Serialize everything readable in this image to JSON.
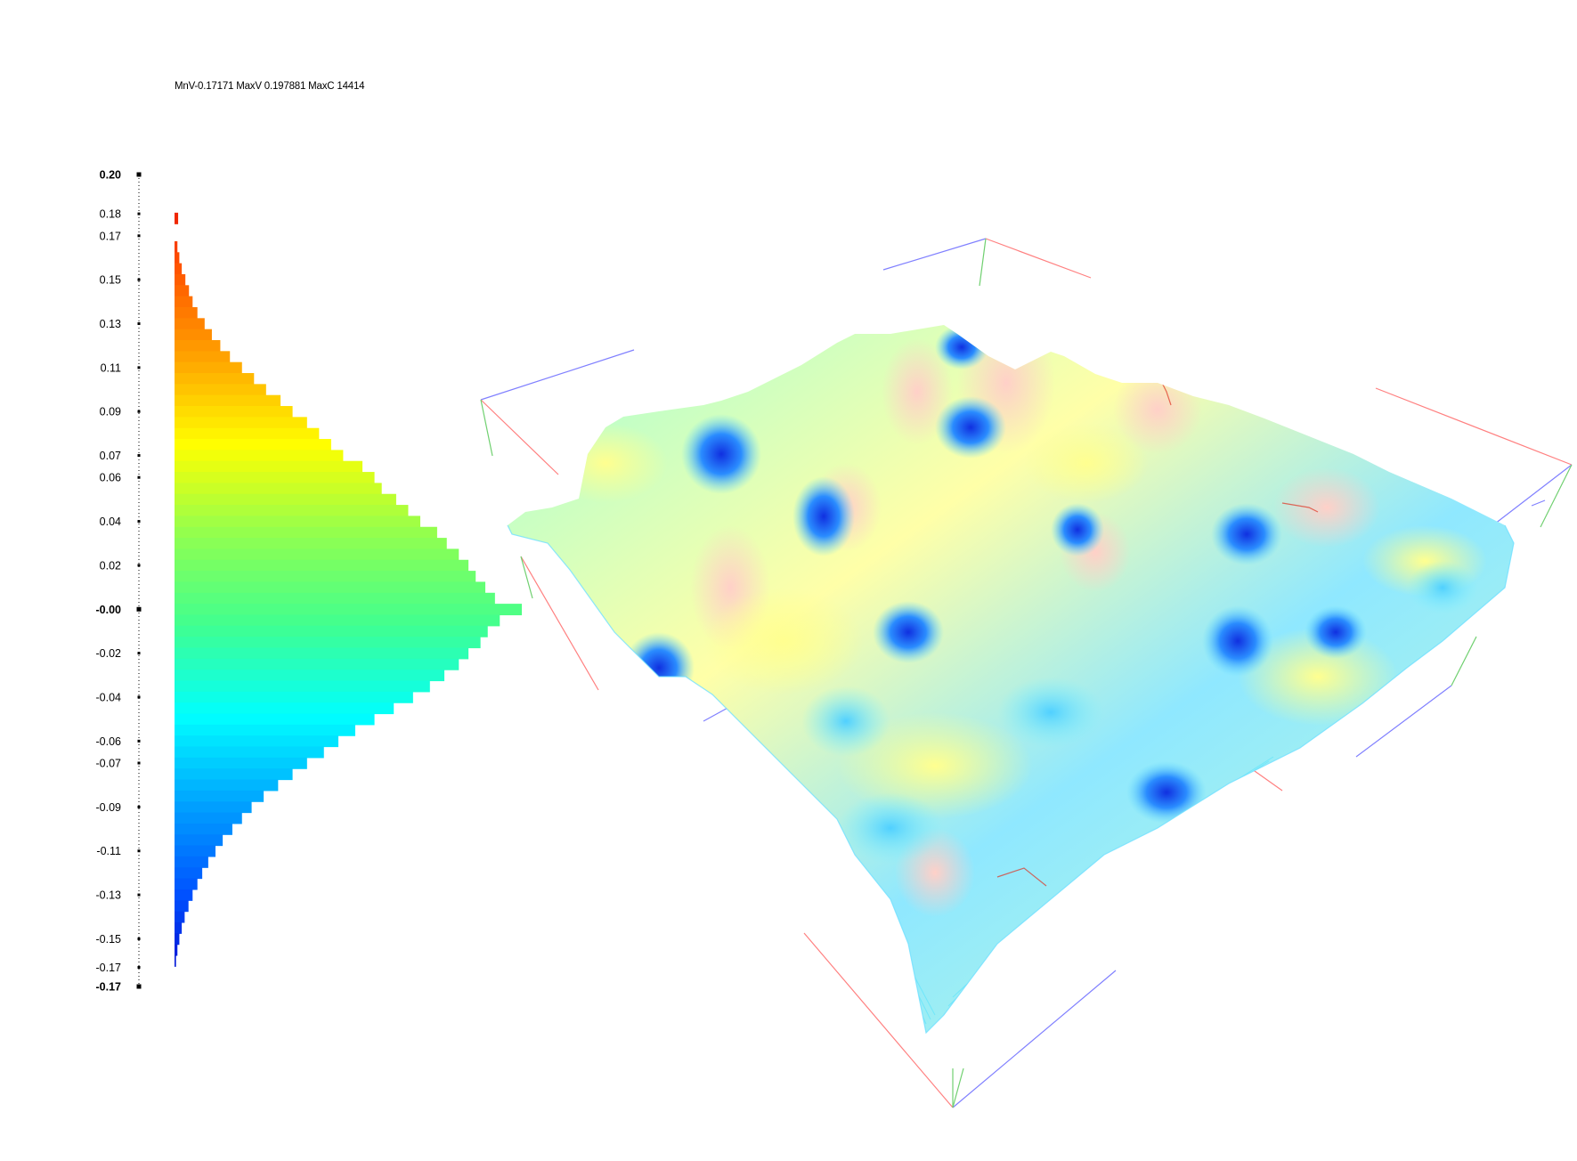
{
  "stats": {
    "text": "MnV-0.17171 MaxV 0.197881 MaxC 14414"
  },
  "colorscale": [
    "#0000c8",
    "#0050ff",
    "#00a0ff",
    "#00ffff",
    "#40ff90",
    "#90ff50",
    "#ffff00",
    "#ffa000",
    "#ff5000",
    "#e00000"
  ],
  "axis_colors": {
    "x": "#ff7070",
    "y": "#7070ff",
    "z": "#60d060"
  },
  "chart_data": [
    {
      "type": "bar",
      "orientation": "horizontal",
      "title": "",
      "description": "Histogram of surface height values, bars colored by value",
      "min_value": -0.17171,
      "max_value": 0.197881,
      "max_count": 14414,
      "ylim": [
        -0.17171,
        0.197881
      ],
      "y_ticks": [
        "0.20",
        "0.18",
        "0.17",
        "0.15",
        "0.13",
        "0.11",
        "0.09",
        "0.07",
        "0.06",
        "0.04",
        "0.02",
        "-0.00",
        "-0.02",
        "-0.04",
        "-0.06",
        "-0.07",
        "-0.09",
        "-0.11",
        "-0.13",
        "-0.15",
        "-0.17",
        "-0.17"
      ],
      "y_tick_values": [
        0.197881,
        0.18,
        0.17,
        0.15,
        0.13,
        0.11,
        0.09,
        0.07,
        0.06,
        0.04,
        0.02,
        0.0,
        -0.02,
        -0.04,
        -0.06,
        -0.07,
        -0.09,
        -0.11,
        -0.13,
        -0.15,
        -0.163,
        -0.17171
      ],
      "bold_ticks": [
        "0.20",
        "-0.00",
        "-0.17"
      ],
      "bins": [
        {
          "value": 0.178,
          "count": 150
        },
        {
          "value": 0.165,
          "count": 120
        },
        {
          "value": 0.16,
          "count": 200
        },
        {
          "value": 0.155,
          "count": 300
        },
        {
          "value": 0.15,
          "count": 450
        },
        {
          "value": 0.145,
          "count": 600
        },
        {
          "value": 0.14,
          "count": 750
        },
        {
          "value": 0.135,
          "count": 950
        },
        {
          "value": 0.13,
          "count": 1250
        },
        {
          "value": 0.125,
          "count": 1550
        },
        {
          "value": 0.12,
          "count": 1900
        },
        {
          "value": 0.115,
          "count": 2300
        },
        {
          "value": 0.11,
          "count": 2800
        },
        {
          "value": 0.105,
          "count": 3300
        },
        {
          "value": 0.1,
          "count": 3800
        },
        {
          "value": 0.095,
          "count": 4400
        },
        {
          "value": 0.09,
          "count": 4900
        },
        {
          "value": 0.085,
          "count": 5500
        },
        {
          "value": 0.08,
          "count": 6000
        },
        {
          "value": 0.075,
          "count": 6500
        },
        {
          "value": 0.07,
          "count": 7000
        },
        {
          "value": 0.065,
          "count": 7800
        },
        {
          "value": 0.06,
          "count": 8300
        },
        {
          "value": 0.055,
          "count": 8600
        },
        {
          "value": 0.05,
          "count": 9200
        },
        {
          "value": 0.045,
          "count": 9700
        },
        {
          "value": 0.04,
          "count": 10200
        },
        {
          "value": 0.035,
          "count": 10900
        },
        {
          "value": 0.03,
          "count": 11300
        },
        {
          "value": 0.025,
          "count": 11800
        },
        {
          "value": 0.02,
          "count": 12200
        },
        {
          "value": 0.015,
          "count": 12500
        },
        {
          "value": 0.01,
          "count": 12900
        },
        {
          "value": 0.005,
          "count": 13300
        },
        {
          "value": 0.0,
          "count": 14414
        },
        {
          "value": -0.005,
          "count": 13500
        },
        {
          "value": -0.01,
          "count": 13000
        },
        {
          "value": -0.015,
          "count": 12700
        },
        {
          "value": -0.02,
          "count": 12200
        },
        {
          "value": -0.025,
          "count": 11800
        },
        {
          "value": -0.03,
          "count": 11200
        },
        {
          "value": -0.035,
          "count": 10600
        },
        {
          "value": -0.04,
          "count": 9900
        },
        {
          "value": -0.045,
          "count": 9100
        },
        {
          "value": -0.05,
          "count": 8300
        },
        {
          "value": -0.055,
          "count": 7500
        },
        {
          "value": -0.06,
          "count": 6800
        },
        {
          "value": -0.065,
          "count": 6200
        },
        {
          "value": -0.07,
          "count": 5500
        },
        {
          "value": -0.075,
          "count": 4900
        },
        {
          "value": -0.08,
          "count": 4300
        },
        {
          "value": -0.085,
          "count": 3700
        },
        {
          "value": -0.09,
          "count": 3200
        },
        {
          "value": -0.095,
          "count": 2800
        },
        {
          "value": -0.1,
          "count": 2400
        },
        {
          "value": -0.105,
          "count": 2000
        },
        {
          "value": -0.11,
          "count": 1700
        },
        {
          "value": -0.115,
          "count": 1400
        },
        {
          "value": -0.12,
          "count": 1150
        },
        {
          "value": -0.125,
          "count": 950
        },
        {
          "value": -0.13,
          "count": 750
        },
        {
          "value": -0.135,
          "count": 580
        },
        {
          "value": -0.14,
          "count": 420
        },
        {
          "value": -0.145,
          "count": 300
        },
        {
          "value": -0.15,
          "count": 200
        },
        {
          "value": -0.155,
          "count": 120
        },
        {
          "value": -0.16,
          "count": 60
        }
      ]
    },
    {
      "type": "surface",
      "title": "",
      "description": "3D height-field surface rendered with the same value colormap inside a wireframe bounding box",
      "value_range": [
        -0.17171,
        0.197881
      ]
    }
  ]
}
